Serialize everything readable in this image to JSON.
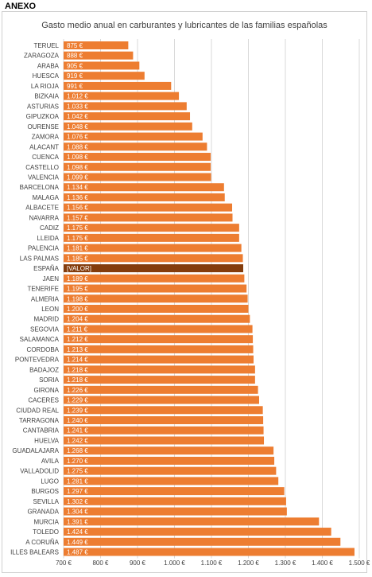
{
  "header": {
    "label": "ANEXO"
  },
  "chart_data": {
    "type": "bar",
    "orientation": "horizontal",
    "title": "Gasto medio anual  en carburantes y lubricantes de las familias españolas",
    "xlim": [
      700,
      1500
    ],
    "xticks": [
      700,
      800,
      900,
      1000,
      1100,
      1200,
      1300,
      1400,
      1500
    ],
    "xtick_labels": [
      "700 €",
      "800 €",
      "900 €",
      "1.000 €",
      "1.100 €",
      "1.200 €",
      "1.300 €",
      "1.400 €",
      "1.500 €"
    ],
    "grid": true,
    "colors": {
      "bar": "#ED7D31",
      "highlight": "#843C0C",
      "grid": "#d9d9d9"
    },
    "highlight_category": "ESPAÑA",
    "categories": [
      "TERUEL",
      "ZARAGOZA",
      "ARABA",
      "HUESCA",
      "LA RIOJA",
      "BIZKAIA",
      "ASTURIAS",
      "GIPUZKOA",
      "OURENSE",
      "ZAMORA",
      "ALACANT",
      "CUENCA",
      "CASTELLO",
      "VALENCIA",
      "BARCELONA",
      "MALAGA",
      "ALBACETE",
      "NAVARRA",
      "CADIZ",
      "LLEIDA",
      "PALENCIA",
      "LAS PALMAS",
      "ESPAÑA",
      "JAEN",
      "TENERIFE",
      "ALMERIA",
      "LEON",
      "MADRID",
      "SEGOVIA",
      "SALAMANCA",
      "CORDOBA",
      "PONTEVEDRA",
      "BADAJOZ",
      "SORIA",
      "GIRONA",
      "CACERES",
      "CIUDAD REAL",
      "TARRAGONA",
      "CANTABRIA",
      "HUELVA",
      "GUADALAJARA",
      "AVILA",
      "VALLADOLID",
      "LUGO",
      "BURGOS",
      "SEVILLA",
      "GRANADA",
      "MURCIA",
      "TOLEDO",
      "A CORUÑA",
      "ILLES BALEARS"
    ],
    "values": [
      875,
      888,
      905,
      919,
      991,
      1012,
      1033,
      1042,
      1048,
      1076,
      1088,
      1098,
      1098,
      1099,
      1134,
      1136,
      1156,
      1157,
      1175,
      1175,
      1181,
      1185,
      1186,
      1189,
      1195,
      1198,
      1200,
      1204,
      1211,
      1212,
      1213,
      1214,
      1218,
      1218,
      1226,
      1229,
      1239,
      1240,
      1241,
      1242,
      1268,
      1270,
      1275,
      1281,
      1297,
      1302,
      1304,
      1391,
      1424,
      1449,
      1487
    ],
    "data_labels": [
      "875 €",
      "888 €",
      "905 €",
      "919 €",
      "991 €",
      "1.012 €",
      "1.033 €",
      "1.042 €",
      "1.048 €",
      "1.076 €",
      "1.088 €",
      "1.098 €",
      "1.098 €",
      "1.099 €",
      "1.134 €",
      "1.136 €",
      "1.156 €",
      "1.157 €",
      "1.175 €",
      "1.175 €",
      "1.181 €",
      "1.185 €",
      "[VALOR]",
      "1.189 €",
      "1.195 €",
      "1.198 €",
      "1.200 €",
      "1.204 €",
      "1.211 €",
      "1.212 €",
      "1.213 €",
      "1.214 €",
      "1.218 €",
      "1.218 €",
      "1.226 €",
      "1.229 €",
      "1.239 €",
      "1.240 €",
      "1.241 €",
      "1.242 €",
      "1.268 €",
      "1.270 €",
      "1.275 €",
      "1.281 €",
      "1.297 €",
      "1.302 €",
      "1.304 €",
      "1.391 €",
      "1.424 €",
      "1.449 €",
      "1.487 €"
    ]
  }
}
